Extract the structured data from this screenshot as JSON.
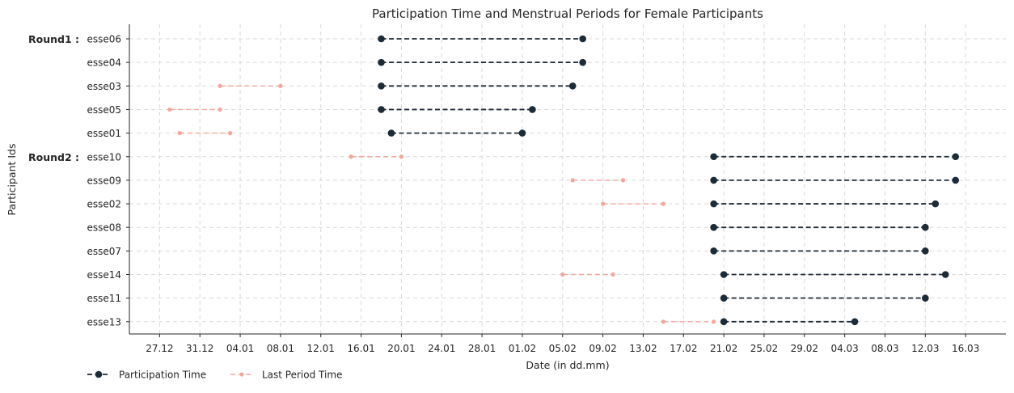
{
  "chart_data": {
    "type": "dumbbell-timeline",
    "title": "Participation Time and Menstrual Periods for Female Participants",
    "xlabel": "Date (in dd.mm)",
    "ylabel": "Participant Ids",
    "x_ticks": [
      "27.12",
      "31.12",
      "04.01",
      "08.01",
      "12.01",
      "16.01",
      "20.01",
      "24.01",
      "28.01",
      "01.02",
      "05.02",
      "09.02",
      "13.02",
      "17.02",
      "21.02",
      "25.02",
      "29.02",
      "04.03",
      "08.03",
      "12.03",
      "16.03"
    ],
    "tick_dates": [
      "2023-12-27",
      "2023-12-31",
      "2024-01-04",
      "2024-01-08",
      "2024-01-12",
      "2024-01-16",
      "2024-01-20",
      "2024-01-24",
      "2024-01-28",
      "2024-02-01",
      "2024-02-05",
      "2024-02-09",
      "2024-02-13",
      "2024-02-17",
      "2024-02-21",
      "2024-02-25",
      "2024-02-29",
      "2024-03-04",
      "2024-03-08",
      "2024-03-12",
      "2024-03-16"
    ],
    "xlim": [
      "2023-12-24",
      "2024-03-20"
    ],
    "grid": true,
    "legend_position": "bottom-left",
    "participants": [
      "esse06",
      "esse04",
      "esse03",
      "esse05",
      "esse01",
      "esse10",
      "esse09",
      "esse02",
      "esse08",
      "esse07",
      "esse14",
      "esse11",
      "esse13"
    ],
    "groups": [
      {
        "label": "Round1 :",
        "participant": "esse06"
      },
      {
        "label": "Round2 :",
        "participant": "esse10"
      }
    ],
    "series": [
      {
        "name": "Participation Time",
        "color": "#1c2b38",
        "values": [
          {
            "id": "esse06",
            "start": "2024-01-18",
            "end": "2024-02-07"
          },
          {
            "id": "esse04",
            "start": "2024-01-18",
            "end": "2024-02-07"
          },
          {
            "id": "esse03",
            "start": "2024-01-18",
            "end": "2024-02-06"
          },
          {
            "id": "esse05",
            "start": "2024-01-18",
            "end": "2024-02-02"
          },
          {
            "id": "esse01",
            "start": "2024-01-19",
            "end": "2024-02-01"
          },
          {
            "id": "esse10",
            "start": "2024-02-20",
            "end": "2024-03-15"
          },
          {
            "id": "esse09",
            "start": "2024-02-20",
            "end": "2024-03-15"
          },
          {
            "id": "esse02",
            "start": "2024-02-20",
            "end": "2024-03-13"
          },
          {
            "id": "esse08",
            "start": "2024-02-20",
            "end": "2024-03-12"
          },
          {
            "id": "esse07",
            "start": "2024-02-20",
            "end": "2024-03-12"
          },
          {
            "id": "esse14",
            "start": "2024-02-21",
            "end": "2024-03-14"
          },
          {
            "id": "esse11",
            "start": "2024-02-21",
            "end": "2024-03-12"
          },
          {
            "id": "esse13",
            "start": "2024-02-21",
            "end": "2024-03-05"
          }
        ]
      },
      {
        "name": "Last Period Time",
        "color": "#f4a59a",
        "values": [
          {
            "id": "esse03",
            "start": "2024-01-02",
            "end": "2024-01-08"
          },
          {
            "id": "esse05",
            "start": "2023-12-28",
            "end": "2024-01-02"
          },
          {
            "id": "esse01",
            "start": "2023-12-29",
            "end": "2024-01-03"
          },
          {
            "id": "esse10",
            "start": "2024-01-15",
            "end": "2024-01-20"
          },
          {
            "id": "esse09",
            "start": "2024-02-06",
            "end": "2024-02-11"
          },
          {
            "id": "esse02",
            "start": "2024-02-09",
            "end": "2024-02-15"
          },
          {
            "id": "esse14",
            "start": "2024-02-05",
            "end": "2024-02-10"
          },
          {
            "id": "esse13",
            "start": "2024-02-15",
            "end": "2024-02-20"
          }
        ]
      }
    ]
  }
}
